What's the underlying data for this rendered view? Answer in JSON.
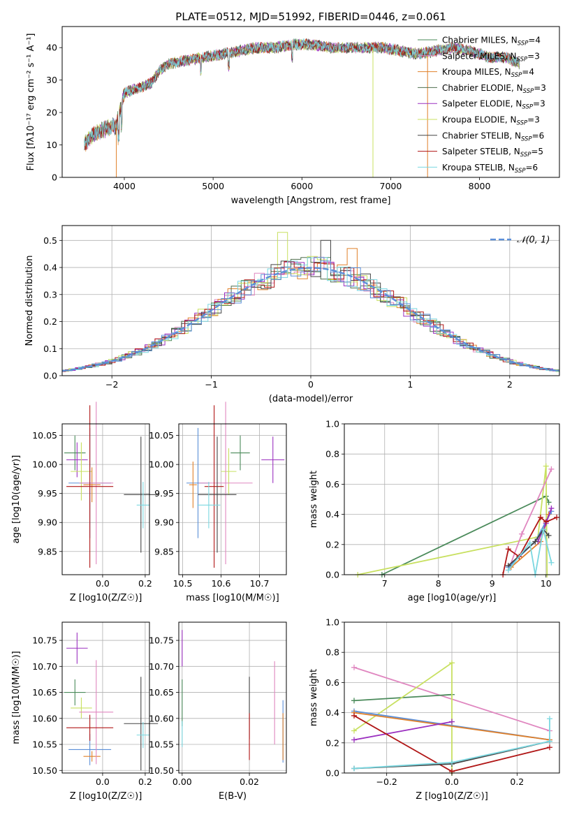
{
  "chart_data": [
    {
      "id": "spectrum",
      "type": "line",
      "title": "PLATE=0512, MJD=51992, FIBERID=0446, z=0.061",
      "xlabel": "wavelength [Angstrom, rest frame]",
      "ylabel": "Flux [fλ10⁻¹⁷ erg cm⁻² s⁻¹ A⁻¹]",
      "xlim": [
        3300,
        8900
      ],
      "ylim": [
        0,
        46.5
      ],
      "xticks": [
        4000,
        5000,
        6000,
        7000,
        8000
      ],
      "yticks": [
        0,
        10,
        20,
        30,
        40
      ],
      "grid": false,
      "legend_position": "upper right",
      "spectrum_profile": {
        "x": [
          3550,
          3600,
          3700,
          3800,
          3870,
          3900,
          3950,
          4000,
          4100,
          4200,
          4300,
          4400,
          4500,
          4700,
          4900,
          5100,
          5300,
          5500,
          5700,
          5900,
          6100,
          6300,
          6500,
          6700,
          6900,
          7100,
          7300,
          7500,
          7700,
          7900,
          8100,
          8300,
          8450
        ],
        "y": [
          10,
          12,
          14,
          15,
          16,
          15,
          20,
          26,
          27,
          28,
          29,
          33,
          35,
          36,
          37,
          38,
          39,
          40,
          40,
          41,
          41,
          40,
          40,
          40,
          40,
          39,
          38,
          39,
          40,
          39,
          37,
          37,
          35
        ]
      },
      "series": [
        {
          "name": "Chabrier MILES",
          "nssp": "4",
          "color": "#4a8a5a"
        },
        {
          "name": "Salpeter MILES",
          "nssp": "3",
          "color": "#e087c0"
        },
        {
          "name": "Kroupa MILES",
          "nssp": "4",
          "color": "#e0802a"
        },
        {
          "name": "Chabrier ELODIE",
          "nssp": "3",
          "color": "#4e6e4e"
        },
        {
          "name": "Salpeter ELODIE",
          "nssp": "3",
          "color": "#9b30c0"
        },
        {
          "name": "Kroupa ELODIE",
          "nssp": "3",
          "color": "#c8e060"
        },
        {
          "name": "Chabrier STELIB",
          "nssp": "6",
          "color": "#444444"
        },
        {
          "name": "Salpeter STELIB",
          "nssp": "5",
          "color": "#b01515"
        },
        {
          "name": "Kroupa STELIB",
          "nssp": "6",
          "color": "#7ad7e0"
        }
      ],
      "drops": [
        {
          "x": 3910,
          "color": "#e0802a"
        },
        {
          "x": 6800,
          "color": "#c8e060"
        },
        {
          "x": 7415,
          "color": "#e0802a"
        }
      ]
    },
    {
      "id": "residuals",
      "type": "histogram",
      "xlabel": "(data-model)/error",
      "ylabel": "Normed distribution",
      "xlim": [
        -2.5,
        2.5
      ],
      "ylim": [
        0,
        0.555
      ],
      "xticks": [
        -2,
        -1,
        0,
        1,
        2
      ],
      "yticks": [
        0.0,
        0.1,
        0.2,
        0.3,
        0.4,
        0.5
      ],
      "grid": true,
      "legend": {
        "label": "𝒩(0, 1)",
        "position": "upper right"
      },
      "curve": {
        "mean": 0,
        "sigma": 1,
        "color": "#5b8fd8"
      },
      "peak_bins": [
        {
          "x0": -0.3,
          "x1": -0.2,
          "y": 0.53,
          "color": "#c8e060"
        },
        {
          "x0": 0.1,
          "x1": 0.2,
          "y": 0.5,
          "color": "#444444"
        },
        {
          "x0": 0.4,
          "x1": 0.5,
          "y": 0.47,
          "color": "#e0802a"
        }
      ]
    },
    {
      "id": "age-vs-Z",
      "type": "errorbar",
      "xlabel": "Z [log10(Z/Z☉)]",
      "ylabel": "age  [log10(age/yr)]",
      "xlim": [
        -0.19,
        0.22
      ],
      "ylim": [
        9.81,
        10.07
      ],
      "xticks": [
        0.0,
        0.2
      ],
      "yticks": [
        9.85,
        9.9,
        9.95,
        10.0,
        10.05
      ],
      "grid": true,
      "points": [
        {
          "color": "#4a8a5a",
          "x": -0.13,
          "y": 10.02,
          "xe": 0.05,
          "ye": 0.03
        },
        {
          "color": "#9b30c0",
          "x": -0.12,
          "y": 10.008,
          "xe": 0.05,
          "ye": 0.03
        },
        {
          "color": "#c8e060",
          "x": -0.1,
          "y": 9.988,
          "xe": 0.05,
          "ye": 0.05
        },
        {
          "color": "#5b8fd8",
          "x": -0.06,
          "y": 9.968,
          "xe": 0.1,
          "ye": 0.095
        },
        {
          "color": "#e0802a",
          "x": -0.05,
          "y": 9.965,
          "xe": 0.04,
          "ye": 0.03
        },
        {
          "color": "#e087c0",
          "x": -0.03,
          "y": 9.968,
          "xe": 0.08,
          "ye": 0.14
        },
        {
          "color": "#b01515",
          "x": -0.06,
          "y": 9.962,
          "xe": 0.11,
          "ye": 0.14
        },
        {
          "color": "#444444",
          "x": 0.18,
          "y": 9.948,
          "xe": 0.08,
          "ye": 0.1
        },
        {
          "color": "#7ad7e0",
          "x": 0.19,
          "y": 9.93,
          "xe": 0.03,
          "ye": 0.04
        }
      ]
    },
    {
      "id": "age-vs-mass",
      "type": "errorbar",
      "xlabel": "mass [log10(M/M☉)]",
      "ylabel": "",
      "xlim": [
        10.49,
        10.77
      ],
      "ylim": [
        9.81,
        10.07
      ],
      "xticks": [
        10.5,
        10.6,
        10.7
      ],
      "yticks": [
        9.85,
        9.9,
        9.95,
        10.0,
        10.05
      ],
      "grid": true,
      "points": [
        {
          "color": "#4a8a5a",
          "x": 10.65,
          "y": 10.02,
          "xe": 0.025,
          "ye": 0.03
        },
        {
          "color": "#9b30c0",
          "x": 10.735,
          "y": 10.008,
          "xe": 0.03,
          "ye": 0.04
        },
        {
          "color": "#c8e060",
          "x": 10.62,
          "y": 9.988,
          "xe": 0.02,
          "ye": 0.04
        },
        {
          "color": "#5b8fd8",
          "x": 10.54,
          "y": 9.968,
          "xe": 0.03,
          "ye": 0.095
        },
        {
          "color": "#e0802a",
          "x": 10.527,
          "y": 9.965,
          "xe": 0.01,
          "ye": 0.04
        },
        {
          "color": "#e087c0",
          "x": 10.612,
          "y": 9.968,
          "xe": 0.07,
          "ye": 0.14
        },
        {
          "color": "#b01515",
          "x": 10.582,
          "y": 9.962,
          "xe": 0.025,
          "ye": 0.14
        },
        {
          "color": "#444444",
          "x": 10.59,
          "y": 9.948,
          "xe": 0.05,
          "ye": 0.1
        },
        {
          "color": "#7ad7e0",
          "x": 10.568,
          "y": 9.93,
          "xe": 0.03,
          "ye": 0.04
        }
      ]
    },
    {
      "id": "mass-vs-Z",
      "type": "errorbar",
      "xlabel": "Z [log10(Z/Z☉)]",
      "ylabel": "mass [log10(M/M☉)]",
      "xlim": [
        -0.19,
        0.22
      ],
      "ylim": [
        10.495,
        10.785
      ],
      "xticks": [
        0.0,
        0.2
      ],
      "yticks": [
        10.5,
        10.55,
        10.6,
        10.65,
        10.7,
        10.75
      ],
      "grid": true,
      "points": [
        {
          "color": "#4a8a5a",
          "x": -0.13,
          "y": 10.65,
          "xe": 0.05,
          "ye": 0.025
        },
        {
          "color": "#9b30c0",
          "x": -0.12,
          "y": 10.735,
          "xe": 0.05,
          "ye": 0.03
        },
        {
          "color": "#c8e060",
          "x": -0.1,
          "y": 10.62,
          "xe": 0.05,
          "ye": 0.02
        },
        {
          "color": "#5b8fd8",
          "x": -0.06,
          "y": 10.54,
          "xe": 0.1,
          "ye": 0.03
        },
        {
          "color": "#e0802a",
          "x": -0.05,
          "y": 10.527,
          "xe": 0.04,
          "ye": 0.01
        },
        {
          "color": "#e087c0",
          "x": -0.03,
          "y": 10.612,
          "xe": 0.08,
          "ye": 0.1
        },
        {
          "color": "#b01515",
          "x": -0.06,
          "y": 10.582,
          "xe": 0.11,
          "ye": 0.025
        },
        {
          "color": "#444444",
          "x": 0.18,
          "y": 10.59,
          "xe": 0.08,
          "ye": 0.09
        },
        {
          "color": "#7ad7e0",
          "x": 0.19,
          "y": 10.568,
          "xe": 0.03,
          "ye": 0.025
        }
      ]
    },
    {
      "id": "mass-vs-EBV",
      "type": "errorbar",
      "xlabel": "E(B-V)",
      "ylabel": "",
      "xlim": [
        -0.001,
        0.031
      ],
      "ylim": [
        10.495,
        10.785
      ],
      "xticks": [
        0.0,
        0.02
      ],
      "yticks": [
        10.5,
        10.55,
        10.6,
        10.65,
        10.7,
        10.75
      ],
      "grid": true,
      "points": [
        {
          "color": "#9b30c0",
          "x": 0.0,
          "y": 10.735,
          "xe": 0,
          "ye": 0.035
        },
        {
          "color": "#4a8a5a",
          "x": 0.0,
          "y": 10.63,
          "xe": 0,
          "ye": 0.045
        },
        {
          "color": "#7ad7e0",
          "x": 0.0,
          "y": 10.57,
          "xe": 0,
          "ye": 0.025
        },
        {
          "color": "#444444",
          "x": 0.02,
          "y": 10.62,
          "xe": 0,
          "ye": 0.06
        },
        {
          "color": "#b01515",
          "x": 0.02,
          "y": 10.565,
          "xe": 0,
          "ye": 0.045
        },
        {
          "color": "#e087c0",
          "x": 0.0275,
          "y": 10.63,
          "xe": 0,
          "ye": 0.08
        },
        {
          "color": "#5b8fd8",
          "x": 0.03,
          "y": 10.575,
          "xe": 0,
          "ye": 0.06
        },
        {
          "color": "#e0802a",
          "x": 0.03,
          "y": 10.565,
          "xe": 0,
          "ye": 0.045
        }
      ]
    },
    {
      "id": "weight-vs-age",
      "type": "line",
      "xlabel": "age  [log10(age/yr)]",
      "ylabel": "mass weight",
      "xlim": [
        6.25,
        10.25
      ],
      "ylim": [
        0,
        1.0
      ],
      "xticks": [
        7,
        8,
        9,
        10
      ],
      "yticks": [
        0.0,
        0.2,
        0.4,
        0.6,
        0.8,
        1.0
      ],
      "grid": true,
      "series": [
        {
          "color": "#4a8a5a",
          "x": [
            6.95,
            10.0,
            10.05
          ],
          "y": [
            0.0,
            0.52,
            0.48
          ]
        },
        {
          "color": "#c8e060",
          "x": [
            6.5,
            9.85,
            10.0,
            10.02
          ],
          "y": [
            0.0,
            0.25,
            0.72,
            0.0
          ]
        },
        {
          "color": "#e087c0",
          "x": [
            9.3,
            9.55,
            10.1
          ],
          "y": [
            0.03,
            0.27,
            0.7
          ]
        },
        {
          "color": "#e0802a",
          "x": [
            9.35,
            9.9,
            10.05
          ],
          "y": [
            0.05,
            0.22,
            0.4
          ]
        },
        {
          "color": "#5b8fd8",
          "x": [
            9.3,
            9.8,
            10.1
          ],
          "y": [
            0.05,
            0.22,
            0.42
          ]
        },
        {
          "color": "#9b30c0",
          "x": [
            9.85,
            10.0,
            10.1
          ],
          "y": [
            0.22,
            0.34,
            0.44
          ]
        },
        {
          "color": "#b01515",
          "x": [
            9.2,
            9.3,
            9.5,
            9.9,
            10.0,
            10.2
          ],
          "y": [
            0.0,
            0.17,
            0.12,
            0.38,
            0.35,
            0.38
          ]
        },
        {
          "color": "#444444",
          "x": [
            9.3,
            9.8,
            9.95,
            10.05
          ],
          "y": [
            0.06,
            0.22,
            0.3,
            0.26
          ]
        },
        {
          "color": "#7ad7e0",
          "x": [
            9.3,
            9.7,
            9.8,
            9.95,
            10.1
          ],
          "y": [
            0.03,
            0.21,
            0.0,
            0.3,
            0.08
          ]
        }
      ]
    },
    {
      "id": "weight-vs-Z",
      "type": "line",
      "xlabel": "Z [log10(Z/Z☉)]",
      "ylabel": "mass weight",
      "xlim": [
        -0.33,
        0.33
      ],
      "ylim": [
        0,
        1.0
      ],
      "xticks": [
        -0.2,
        0.0,
        0.2
      ],
      "yticks": [
        0.0,
        0.2,
        0.4,
        0.6,
        0.8,
        1.0
      ],
      "grid": true,
      "series": [
        {
          "color": "#e087c0",
          "x": [
            -0.3,
            0.3
          ],
          "y": [
            0.7,
            0.28
          ]
        },
        {
          "color": "#4a8a5a",
          "x": [
            -0.3,
            0.0
          ],
          "y": [
            0.48,
            0.52
          ]
        },
        {
          "color": "#c8e060",
          "x": [
            -0.3,
            0.0,
            0.0
          ],
          "y": [
            0.28,
            0.73,
            0.0
          ]
        },
        {
          "color": "#5b8fd8",
          "x": [
            -0.3,
            0.3
          ],
          "y": [
            0.41,
            0.22
          ]
        },
        {
          "color": "#e0802a",
          "x": [
            -0.3,
            0.3
          ],
          "y": [
            0.4,
            0.22
          ]
        },
        {
          "color": "#9b30c0",
          "x": [
            -0.3,
            0.0
          ],
          "y": [
            0.22,
            0.34
          ]
        },
        {
          "color": "#b01515",
          "x": [
            -0.3,
            0.0,
            0.3
          ],
          "y": [
            0.38,
            0.01,
            0.17
          ]
        },
        {
          "color": "#444444",
          "x": [
            -0.3,
            0.0,
            0.3
          ],
          "y": [
            0.03,
            0.06,
            0.21
          ]
        },
        {
          "color": "#7ad7e0",
          "x": [
            -0.3,
            0.0,
            0.3,
            0.3
          ],
          "y": [
            0.03,
            0.07,
            0.21,
            0.36
          ]
        }
      ]
    }
  ]
}
